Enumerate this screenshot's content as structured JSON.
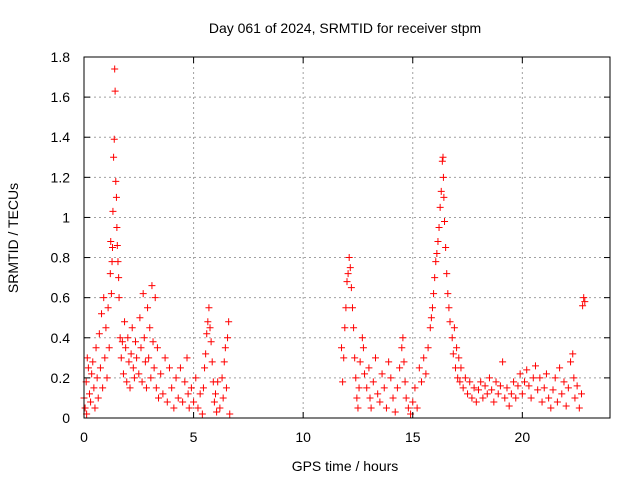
{
  "chart_data": {
    "type": "scatter",
    "title": "Day 061 of 2024, SRMTID for receiver stpm",
    "xlabel": "GPS time / hours",
    "ylabel": "SRMTID / TECUs",
    "xlim": [
      0,
      24
    ],
    "ylim": [
      0,
      1.8
    ],
    "xticks": [
      0,
      5,
      10,
      15,
      20
    ],
    "xtick_labels": [
      "0",
      "5",
      "10",
      "15",
      "20"
    ],
    "yticks": [
      0,
      0.2,
      0.4,
      0.6,
      0.8,
      1,
      1.2,
      1.4,
      1.6,
      1.8
    ],
    "ytick_labels": [
      "0",
      "0.2",
      "0.4",
      "0.6",
      "0.8",
      "1",
      "1.2",
      "1.4",
      "1.6",
      "1.8"
    ],
    "grid": true,
    "marker": "+",
    "color": "#ff0000",
    "series": [
      {
        "name": "SRMTID",
        "points": [
          [
            0.0,
            0.1
          ],
          [
            0.05,
            0.05
          ],
          [
            0.1,
            0.18
          ],
          [
            0.12,
            0.02
          ],
          [
            0.15,
            0.3
          ],
          [
            0.2,
            0.25
          ],
          [
            0.25,
            0.12
          ],
          [
            0.3,
            0.08
          ],
          [
            0.35,
            0.22
          ],
          [
            0.4,
            0.28
          ],
          [
            0.45,
            0.15
          ],
          [
            0.5,
            0.05
          ],
          [
            0.55,
            0.35
          ],
          [
            0.6,
            0.2
          ],
          [
            0.65,
            0.1
          ],
          [
            0.7,
            0.42
          ],
          [
            0.75,
            0.25
          ],
          [
            0.8,
            0.52
          ],
          [
            0.85,
            0.15
          ],
          [
            0.9,
            0.6
          ],
          [
            0.95,
            0.3
          ],
          [
            1.0,
            0.45
          ],
          [
            1.05,
            0.2
          ],
          [
            1.1,
            0.55
          ],
          [
            1.15,
            0.35
          ],
          [
            1.2,
            0.72
          ],
          [
            1.22,
            0.88
          ],
          [
            1.25,
            0.62
          ],
          [
            1.28,
            0.78
          ],
          [
            1.3,
            0.85
          ],
          [
            1.32,
            1.03
          ],
          [
            1.35,
            1.3
          ],
          [
            1.38,
            1.39
          ],
          [
            1.4,
            1.74
          ],
          [
            1.42,
            1.63
          ],
          [
            1.45,
            1.18
          ],
          [
            1.48,
            1.1
          ],
          [
            1.5,
            0.95
          ],
          [
            1.52,
            0.86
          ],
          [
            1.55,
            0.78
          ],
          [
            1.58,
            0.7
          ],
          [
            1.6,
            0.6
          ],
          [
            1.65,
            0.4
          ],
          [
            1.7,
            0.3
          ],
          [
            1.75,
            0.38
          ],
          [
            1.8,
            0.22
          ],
          [
            1.85,
            0.48
          ],
          [
            1.9,
            0.35
          ],
          [
            1.95,
            0.18
          ],
          [
            2.0,
            0.4
          ],
          [
            2.05,
            0.28
          ],
          [
            2.1,
            0.15
          ],
          [
            2.15,
            0.32
          ],
          [
            2.2,
            0.45
          ],
          [
            2.25,
            0.25
          ],
          [
            2.3,
            0.2
          ],
          [
            2.35,
            0.38
          ],
          [
            2.4,
            0.3
          ],
          [
            2.5,
            0.22
          ],
          [
            2.55,
            0.5
          ],
          [
            2.6,
            0.35
          ],
          [
            2.65,
            0.18
          ],
          [
            2.7,
            0.62
          ],
          [
            2.75,
            0.4
          ],
          [
            2.8,
            0.28
          ],
          [
            2.85,
            0.15
          ],
          [
            2.9,
            0.55
          ],
          [
            2.95,
            0.3
          ],
          [
            3.0,
            0.45
          ],
          [
            3.05,
            0.2
          ],
          [
            3.1,
            0.66
          ],
          [
            3.15,
            0.38
          ],
          [
            3.2,
            0.25
          ],
          [
            3.25,
            0.6
          ],
          [
            3.3,
            0.15
          ],
          [
            3.35,
            0.35
          ],
          [
            3.4,
            0.1
          ],
          [
            3.5,
            0.22
          ],
          [
            3.6,
            0.12
          ],
          [
            3.7,
            0.3
          ],
          [
            3.8,
            0.08
          ],
          [
            3.9,
            0.25
          ],
          [
            4.0,
            0.15
          ],
          [
            4.1,
            0.05
          ],
          [
            4.2,
            0.2
          ],
          [
            4.3,
            0.1
          ],
          [
            4.4,
            0.25
          ],
          [
            4.5,
            0.08
          ],
          [
            4.6,
            0.18
          ],
          [
            4.7,
            0.3
          ],
          [
            4.75,
            0.12
          ],
          [
            4.8,
            0.05
          ],
          [
            4.9,
            0.15
          ],
          [
            5.0,
            0.08
          ],
          [
            5.1,
            0.2
          ],
          [
            5.2,
            0.05
          ],
          [
            5.3,
            0.12
          ],
          [
            5.4,
            0.02
          ],
          [
            5.45,
            0.15
          ],
          [
            5.5,
            0.25
          ],
          [
            5.55,
            0.32
          ],
          [
            5.6,
            0.42
          ],
          [
            5.65,
            0.48
          ],
          [
            5.7,
            0.55
          ],
          [
            5.75,
            0.45
          ],
          [
            5.8,
            0.38
          ],
          [
            5.85,
            0.28
          ],
          [
            5.9,
            0.18
          ],
          [
            5.95,
            0.08
          ],
          [
            6.0,
            0.12
          ],
          [
            6.05,
            0.03
          ],
          [
            6.1,
            0.18
          ],
          [
            6.2,
            0.05
          ],
          [
            6.3,
            0.2
          ],
          [
            6.35,
            0.1
          ],
          [
            6.4,
            0.28
          ],
          [
            6.45,
            0.35
          ],
          [
            6.5,
            0.15
          ],
          [
            6.55,
            0.4
          ],
          [
            6.6,
            0.48
          ],
          [
            6.65,
            0.02
          ],
          [
            11.75,
            0.35
          ],
          [
            11.8,
            0.18
          ],
          [
            11.85,
            0.3
          ],
          [
            11.9,
            0.45
          ],
          [
            11.95,
            0.55
          ],
          [
            12.0,
            0.68
          ],
          [
            12.05,
            0.72
          ],
          [
            12.1,
            0.8
          ],
          [
            12.15,
            0.75
          ],
          [
            12.2,
            0.65
          ],
          [
            12.25,
            0.55
          ],
          [
            12.3,
            0.45
          ],
          [
            12.35,
            0.3
          ],
          [
            12.4,
            0.2
          ],
          [
            12.45,
            0.1
          ],
          [
            12.5,
            0.05
          ],
          [
            12.55,
            0.15
          ],
          [
            12.6,
            0.28
          ],
          [
            12.7,
            0.4
          ],
          [
            12.75,
            0.35
          ],
          [
            12.8,
            0.22
          ],
          [
            12.9,
            0.15
          ],
          [
            13.0,
            0.25
          ],
          [
            13.05,
            0.1
          ],
          [
            13.1,
            0.05
          ],
          [
            13.2,
            0.18
          ],
          [
            13.3,
            0.3
          ],
          [
            13.4,
            0.12
          ],
          [
            13.5,
            0.08
          ],
          [
            13.6,
            0.22
          ],
          [
            13.7,
            0.15
          ],
          [
            13.8,
            0.05
          ],
          [
            13.9,
            0.28
          ],
          [
            14.0,
            0.2
          ],
          [
            14.1,
            0.1
          ],
          [
            14.2,
            0.03
          ],
          [
            14.3,
            0.15
          ],
          [
            14.4,
            0.25
          ],
          [
            14.5,
            0.35
          ],
          [
            14.55,
            0.4
          ],
          [
            14.6,
            0.28
          ],
          [
            14.65,
            0.18
          ],
          [
            14.7,
            0.1
          ],
          [
            14.8,
            0.05
          ],
          [
            14.9,
            0.02
          ],
          [
            15.0,
            0.08
          ],
          [
            15.1,
            0.15
          ],
          [
            15.2,
            0.05
          ],
          [
            15.3,
            0.25
          ],
          [
            15.4,
            0.18
          ],
          [
            15.5,
            0.3
          ],
          [
            15.6,
            0.22
          ],
          [
            15.7,
            0.35
          ],
          [
            15.8,
            0.45
          ],
          [
            15.85,
            0.5
          ],
          [
            15.9,
            0.55
          ],
          [
            15.95,
            0.62
          ],
          [
            16.0,
            0.7
          ],
          [
            16.05,
            0.78
          ],
          [
            16.1,
            0.82
          ],
          [
            16.15,
            0.88
          ],
          [
            16.2,
            0.95
          ],
          [
            16.25,
            1.05
          ],
          [
            16.3,
            1.13
          ],
          [
            16.35,
            1.28
          ],
          [
            16.38,
            1.3
          ],
          [
            16.4,
            1.2
          ],
          [
            16.42,
            1.1
          ],
          [
            16.45,
            0.98
          ],
          [
            16.5,
            0.85
          ],
          [
            16.55,
            0.72
          ],
          [
            16.6,
            0.62
          ],
          [
            16.65,
            0.55
          ],
          [
            16.7,
            0.48
          ],
          [
            16.8,
            0.4
          ],
          [
            16.85,
            0.32
          ],
          [
            16.9,
            0.45
          ],
          [
            16.95,
            0.25
          ],
          [
            17.0,
            0.35
          ],
          [
            17.05,
            0.2
          ],
          [
            17.1,
            0.3
          ],
          [
            17.15,
            0.18
          ],
          [
            17.2,
            0.25
          ],
          [
            17.3,
            0.15
          ],
          [
            17.4,
            0.2
          ],
          [
            17.5,
            0.12
          ],
          [
            17.6,
            0.18
          ],
          [
            17.7,
            0.1
          ],
          [
            17.8,
            0.15
          ],
          [
            17.9,
            0.08
          ],
          [
            18.0,
            0.14
          ],
          [
            18.1,
            0.18
          ],
          [
            18.2,
            0.1
          ],
          [
            18.3,
            0.16
          ],
          [
            18.4,
            0.12
          ],
          [
            18.5,
            0.2
          ],
          [
            18.6,
            0.14
          ],
          [
            18.7,
            0.08
          ],
          [
            18.8,
            0.18
          ],
          [
            18.9,
            0.12
          ],
          [
            19.0,
            0.16
          ],
          [
            19.1,
            0.28
          ],
          [
            19.2,
            0.1
          ],
          [
            19.3,
            0.15
          ],
          [
            19.4,
            0.06
          ],
          [
            19.5,
            0.12
          ],
          [
            19.6,
            0.18
          ],
          [
            19.7,
            0.1
          ],
          [
            19.8,
            0.16
          ],
          [
            19.9,
            0.22
          ],
          [
            20.0,
            0.12
          ],
          [
            20.1,
            0.18
          ],
          [
            20.2,
            0.24
          ],
          [
            20.3,
            0.16
          ],
          [
            20.4,
            0.1
          ],
          [
            20.5,
            0.2
          ],
          [
            20.6,
            0.26
          ],
          [
            20.7,
            0.14
          ],
          [
            20.8,
            0.2
          ],
          [
            20.9,
            0.08
          ],
          [
            21.0,
            0.15
          ],
          [
            21.1,
            0.22
          ],
          [
            21.2,
            0.1
          ],
          [
            21.3,
            0.05
          ],
          [
            21.4,
            0.14
          ],
          [
            21.5,
            0.2
          ],
          [
            21.6,
            0.08
          ],
          [
            21.7,
            0.25
          ],
          [
            21.8,
            0.12
          ],
          [
            21.9,
            0.18
          ],
          [
            22.0,
            0.06
          ],
          [
            22.1,
            0.15
          ],
          [
            22.2,
            0.28
          ],
          [
            22.3,
            0.32
          ],
          [
            22.35,
            0.2
          ],
          [
            22.4,
            0.1
          ],
          [
            22.5,
            0.16
          ],
          [
            22.6,
            0.05
          ],
          [
            22.7,
            0.12
          ],
          [
            22.75,
            0.56
          ],
          [
            22.8,
            0.6
          ],
          [
            22.85,
            0.58
          ]
        ]
      }
    ]
  }
}
